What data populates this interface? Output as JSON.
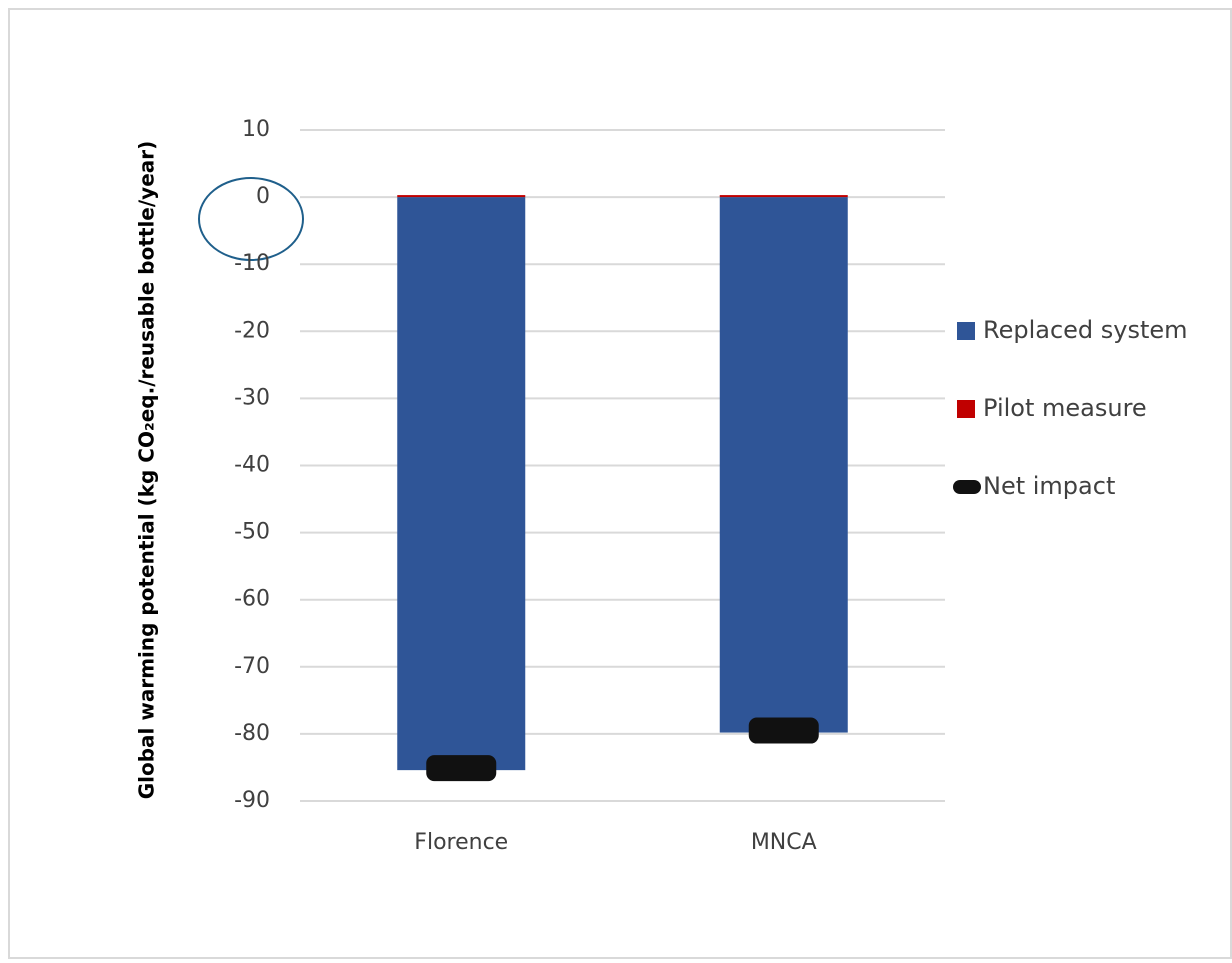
{
  "chart_data": {
    "type": "bar",
    "stacked": true,
    "y_label": "Global warming potential (kg CO₂eq./reusable bottle/year)",
    "categories": [
      "Florence",
      "MNCA"
    ],
    "series": [
      {
        "name": "Replaced system",
        "color": "#2f5597",
        "kind": "bar",
        "values": [
          -85.4,
          -79.8
        ]
      },
      {
        "name": "Pilot measure",
        "color": "#c00000",
        "kind": "bar",
        "values": [
          0.3,
          0.3
        ]
      },
      {
        "name": "Net impact",
        "color": "#111111",
        "kind": "marker",
        "values": [
          -85.1,
          -79.5
        ]
      }
    ],
    "ylim": [
      -90,
      10
    ],
    "yticks": [
      10,
      0,
      -10,
      -20,
      -30,
      -40,
      -50,
      -60,
      -70,
      -80,
      -90
    ],
    "grid": true,
    "legend": "right"
  }
}
